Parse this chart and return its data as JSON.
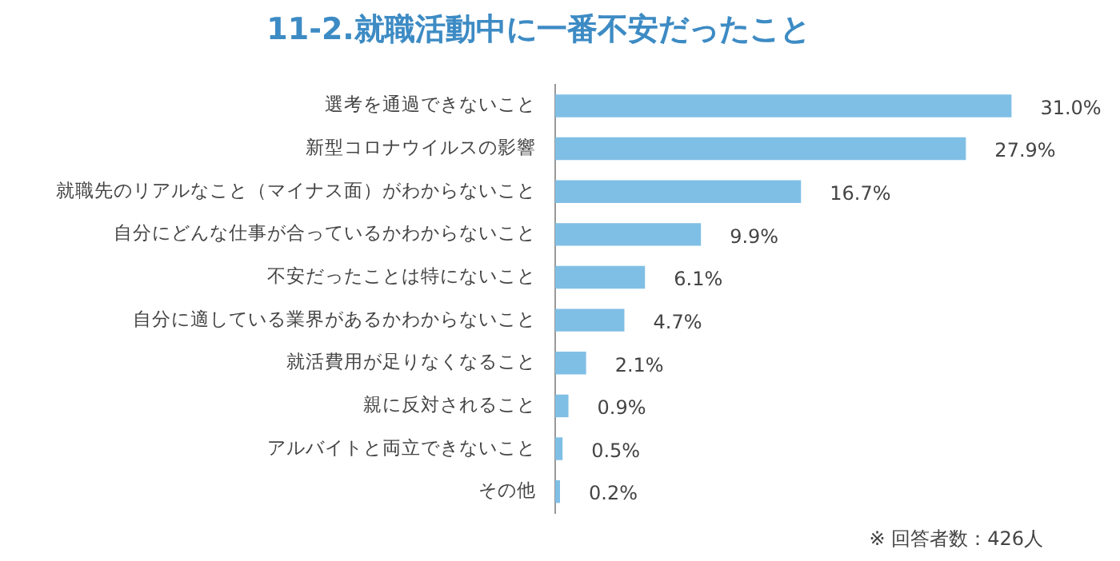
{
  "chart_data": {
    "type": "bar",
    "orientation": "horizontal",
    "title": "11-2.就職活動中に一番不安だったこと",
    "categories": [
      "選考を通過できないこと",
      "新型コロナウイルスの影響",
      "就職先のリアルなこと（マイナス面）がわからないこと",
      "自分にどんな仕事が合っているかわからないこと",
      "不安だったことは特にないこと",
      "自分に適している業界があるかわからないこと",
      "就活費用が足りなくなること",
      "親に反対されること",
      "アルバイトと両立できないこと",
      "その他"
    ],
    "values": [
      31.0,
      27.9,
      16.7,
      9.9,
      6.1,
      4.7,
      2.1,
      0.9,
      0.5,
      0.2
    ],
    "value_labels": [
      "31.0%",
      "27.9%",
      "16.7%",
      "9.9%",
      "6.1%",
      "4.7%",
      "2.1%",
      "0.9%",
      "0.5%",
      "0.2%"
    ],
    "color": "#80bfe5",
    "grid": false,
    "tick_labels": "y",
    "annotations": [
      "※ 回答者数：426人"
    ]
  }
}
